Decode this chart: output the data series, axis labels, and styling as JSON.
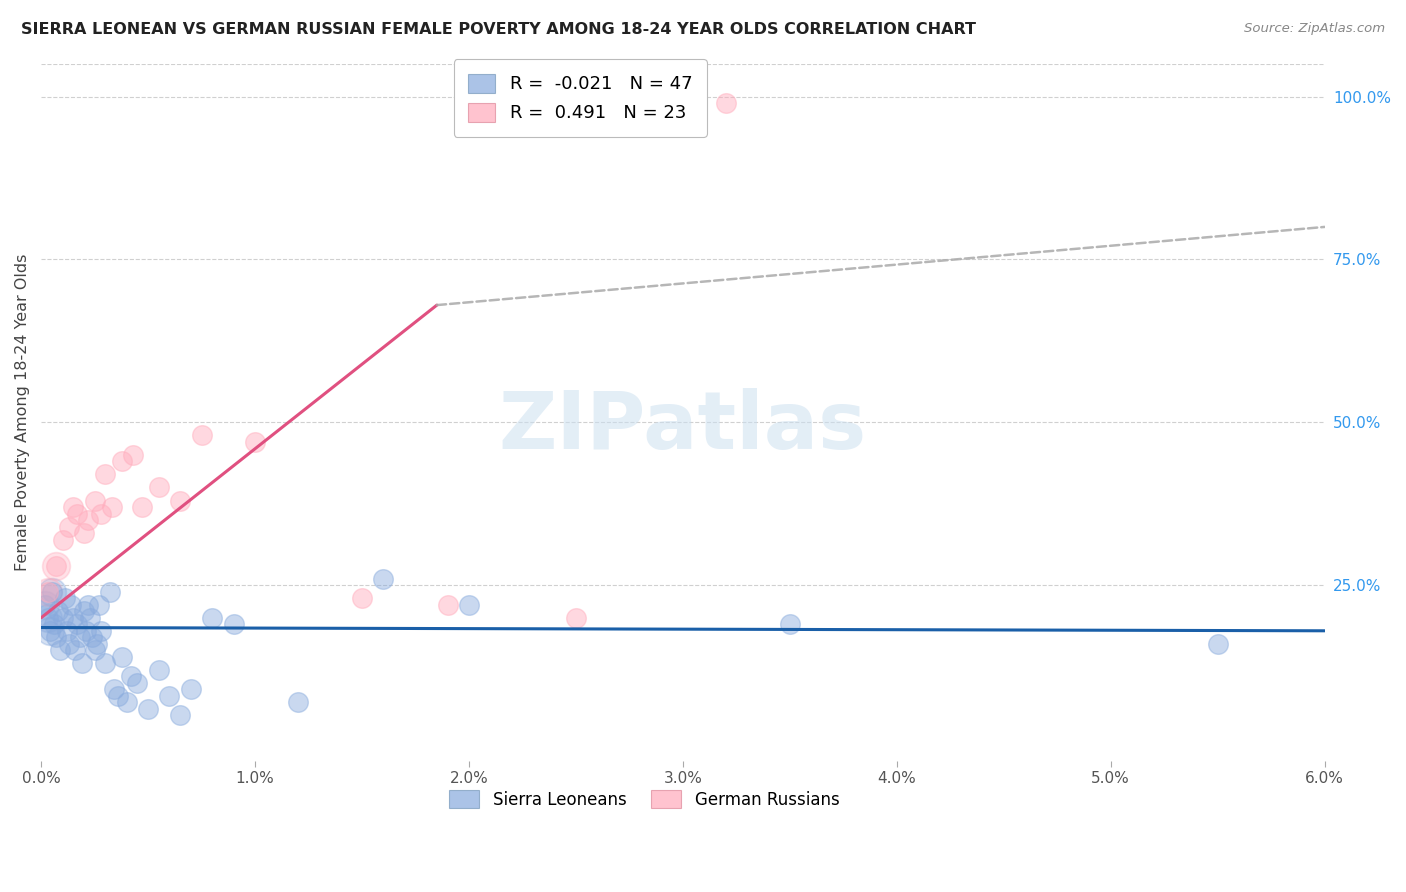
{
  "title": "SIERRA LEONEAN VS GERMAN RUSSIAN FEMALE POVERTY AMONG 18-24 YEAR OLDS CORRELATION CHART",
  "source": "Source: ZipAtlas.com",
  "ylabel": "Female Poverty Among 18-24 Year Olds",
  "xlim": [
    0.0,
    6.0
  ],
  "ylim": [
    -2.0,
    105.0
  ],
  "yticks": [
    0.0,
    25.0,
    50.0,
    75.0,
    100.0
  ],
  "ytick_labels": [
    "",
    "25.0%",
    "50.0%",
    "75.0%",
    "100.0%"
  ],
  "legend_label_blue": "Sierra Leoneans",
  "legend_label_pink": "German Russians",
  "blue_color": "#88aadd",
  "pink_color": "#ffaabb",
  "blue_line_color": "#1a5fa8",
  "pink_line_color": "#e05080",
  "watermark": "ZIPatlas",
  "blue_r": -0.021,
  "blue_n": 47,
  "pink_r": 0.491,
  "pink_n": 23,
  "sierra_x": [
    0.02,
    0.03,
    0.04,
    0.05,
    0.06,
    0.07,
    0.08,
    0.09,
    0.1,
    0.11,
    0.12,
    0.13,
    0.14,
    0.15,
    0.16,
    0.17,
    0.18,
    0.19,
    0.2,
    0.21,
    0.22,
    0.23,
    0.24,
    0.25,
    0.26,
    0.27,
    0.28,
    0.3,
    0.32,
    0.34,
    0.36,
    0.38,
    0.4,
    0.42,
    0.45,
    0.5,
    0.55,
    0.6,
    0.65,
    0.7,
    0.8,
    0.9,
    1.2,
    1.6,
    2.0,
    3.5,
    5.5
  ],
  "sierra_y": [
    22.0,
    20.0,
    18.0,
    24.0,
    19.0,
    17.0,
    21.0,
    15.0,
    20.0,
    23.0,
    18.0,
    16.0,
    22.0,
    20.0,
    15.0,
    19.0,
    17.0,
    13.0,
    21.0,
    18.0,
    22.0,
    20.0,
    17.0,
    15.0,
    16.0,
    22.0,
    18.0,
    13.0,
    24.0,
    9.0,
    8.0,
    14.0,
    7.0,
    11.0,
    10.0,
    6.0,
    12.0,
    8.0,
    5.0,
    9.0,
    20.0,
    19.0,
    7.0,
    26.0,
    22.0,
    19.0,
    16.0
  ],
  "german_x": [
    0.03,
    0.07,
    0.1,
    0.13,
    0.15,
    0.17,
    0.2,
    0.22,
    0.25,
    0.28,
    0.3,
    0.33,
    0.38,
    0.43,
    0.47,
    0.55,
    0.65,
    0.75,
    1.0,
    1.5,
    1.9,
    2.5,
    3.2
  ],
  "german_y": [
    24.0,
    28.0,
    32.0,
    34.0,
    37.0,
    36.0,
    33.0,
    35.0,
    38.0,
    36.0,
    42.0,
    37.0,
    44.0,
    45.0,
    37.0,
    40.0,
    38.0,
    48.0,
    47.0,
    23.0,
    22.0,
    20.0,
    99.0
  ],
  "pink_line_x0": 0.0,
  "pink_line_y0": 20.0,
  "pink_line_x1": 1.85,
  "pink_line_y1": 68.0,
  "pink_dash_x1": 6.0,
  "pink_dash_y1": 80.0,
  "blue_line_x0": 0.0,
  "blue_line_y0": 18.5,
  "blue_line_x1": 6.0,
  "blue_line_y1": 18.0
}
